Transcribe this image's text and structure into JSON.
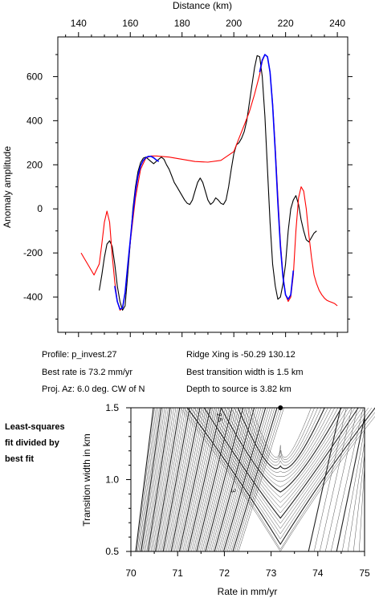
{
  "info": {
    "profile": "Profile: p_invest.27",
    "best_rate": "Best rate is 73.2 mm/yr",
    "proj_az": "Proj. Az: 6.0 deg. CW of N",
    "ridge_xing": "Ridge Xing is -50.29 130.12",
    "best_width": "Best transition width is 1.5 km",
    "depth": "Depth to source is   3.82 km"
  },
  "side_label": [
    "Least-squares",
    "fit divided by",
    "best fit"
  ],
  "colors": {
    "observed": "#000000",
    "model": "#ff0000",
    "fit": "#0000ff"
  },
  "chart_data": [
    {
      "type": "line",
      "xlabel": "Distance (km)",
      "ylabel": "Anomaly amplitude",
      "xlim": [
        132,
        244
      ],
      "ylim": [
        -560,
        780
      ],
      "xticks": [
        140,
        160,
        180,
        200,
        220,
        240
      ],
      "yticks": [
        -400,
        -200,
        0,
        200,
        400,
        600
      ],
      "series": [
        {
          "key": "observed",
          "x": [
            148,
            149,
            150,
            151,
            152,
            153,
            154,
            155,
            156,
            157,
            158,
            159,
            160,
            161,
            162,
            163,
            164,
            165,
            166,
            167,
            168,
            169,
            170,
            171,
            172,
            173,
            174,
            175,
            176,
            177,
            178,
            179,
            180,
            181,
            182,
            183,
            184,
            185,
            186,
            187,
            188,
            189,
            190,
            191,
            192,
            193,
            194,
            195,
            196,
            197,
            198,
            199,
            200,
            201,
            202,
            203,
            204,
            205,
            206,
            207,
            208,
            209,
            210,
            211,
            212,
            213,
            214,
            215,
            216,
            217,
            218,
            219,
            220,
            221,
            222,
            223,
            224,
            225,
            226,
            227,
            228,
            229,
            230,
            231,
            232
          ],
          "y": [
            -370,
            -300,
            -220,
            -160,
            -145,
            -170,
            -250,
            -350,
            -420,
            -460,
            -440,
            -300,
            -150,
            0,
            100,
            170,
            210,
            230,
            235,
            225,
            215,
            205,
            215,
            225,
            235,
            225,
            200,
            180,
            150,
            120,
            100,
            80,
            60,
            40,
            25,
            20,
            40,
            80,
            120,
            140,
            120,
            80,
            40,
            20,
            30,
            50,
            40,
            25,
            20,
            40,
            100,
            180,
            250,
            290,
            300,
            320,
            350,
            400,
            480,
            560,
            640,
            695,
            690,
            600,
            420,
            180,
            -60,
            -250,
            -350,
            -410,
            -400,
            -340,
            -250,
            -100,
            0,
            40,
            60,
            20,
            -50,
            -100,
            -140,
            -150,
            -130,
            -110,
            -100
          ]
        },
        {
          "key": "model",
          "x": [
            141,
            142,
            144,
            146,
            148,
            149,
            150,
            151,
            152,
            153,
            154,
            155,
            156,
            157,
            158,
            160,
            162,
            164,
            166,
            168,
            170,
            175,
            180,
            185,
            190,
            195,
            200,
            202,
            204,
            206,
            208,
            210,
            211,
            212,
            213,
            214,
            215,
            216,
            217,
            218,
            219,
            220,
            221,
            222,
            223,
            224,
            225,
            226,
            227,
            228,
            229,
            230,
            231,
            232,
            233,
            234,
            235,
            236,
            237,
            238,
            239,
            240
          ],
          "y": [
            -200,
            -220,
            -260,
            -300,
            -250,
            -160,
            -60,
            -10,
            -60,
            -210,
            -330,
            -420,
            -460,
            -450,
            -380,
            -150,
            50,
            180,
            230,
            240,
            240,
            235,
            225,
            215,
            212,
            220,
            260,
            320,
            380,
            440,
            520,
            610,
            670,
            700,
            690,
            620,
            480,
            280,
            60,
            -150,
            -300,
            -390,
            -420,
            -400,
            -300,
            -100,
            50,
            100,
            80,
            0,
            -120,
            -220,
            -300,
            -340,
            -370,
            -390,
            -405,
            -415,
            -420,
            -425,
            -430,
            -440
          ]
        },
        {
          "key": "fit",
          "x": [
            154,
            155,
            156,
            157,
            158,
            159,
            160,
            161,
            162,
            163,
            164,
            165,
            166,
            167,
            168,
            169,
            170,
            171,
            210,
            211,
            212,
            213,
            214,
            215,
            216,
            217,
            218,
            219,
            220,
            221,
            222,
            223
          ],
          "y": [
            -350,
            -420,
            -455,
            -450,
            -380,
            -260,
            -140,
            -20,
            80,
            150,
            195,
            220,
            232,
            238,
            238,
            232,
            222,
            215,
            620,
            675,
            700,
            690,
            620,
            470,
            260,
            30,
            -170,
            -310,
            -390,
            -410,
            -390,
            -280
          ]
        }
      ]
    },
    {
      "type": "heatmap",
      "style": "contour",
      "xlabel": "Rate in mm/yr",
      "ylabel": "Transition width in km",
      "xlim": [
        70,
        75
      ],
      "ylim": [
        0.5,
        1.5
      ],
      "xticks": [
        70,
        71,
        72,
        73,
        74,
        75
      ],
      "yticks": [
        0.5,
        1.0,
        1.5
      ],
      "best_fit_point": {
        "x": 73.2,
        "y": 1.5
      },
      "contour_labels": [
        {
          "text": "2.5",
          "x": 71.85,
          "y": 1.43
        },
        {
          "text": "3",
          "x": 72.15,
          "y": 0.92
        }
      ]
    }
  ]
}
